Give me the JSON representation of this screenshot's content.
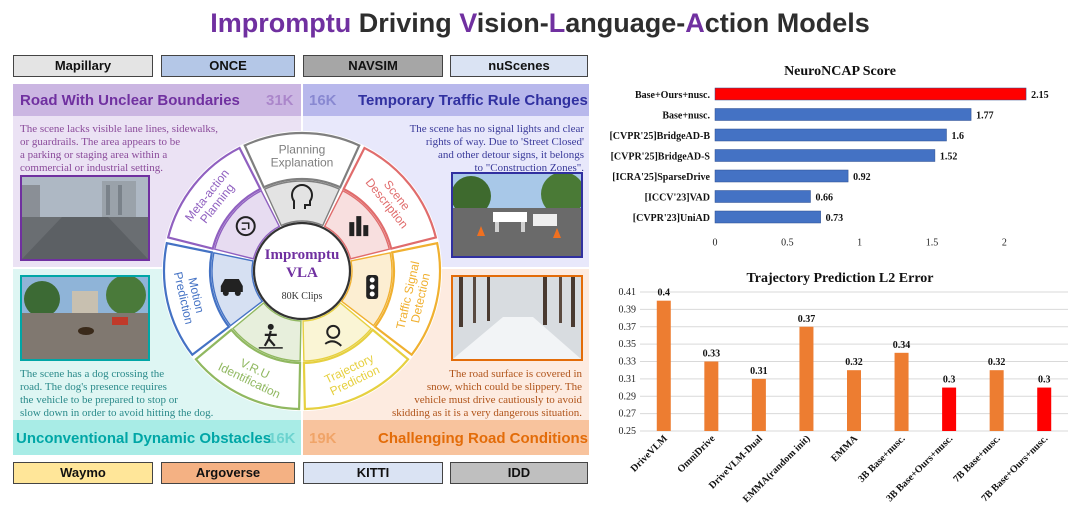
{
  "title": {
    "parts": [
      {
        "text": "Impromptu",
        "hl": true
      },
      {
        "text": " Driving ",
        "hl": false
      },
      {
        "text": "V",
        "hl": true
      },
      {
        "text": "ision-",
        "hl": false
      },
      {
        "text": "L",
        "hl": true
      },
      {
        "text": "anguage-",
        "hl": false
      },
      {
        "text": "A",
        "hl": true
      },
      {
        "text": "ction Models",
        "hl": false
      }
    ]
  },
  "datasets_top": [
    {
      "label": "Mapillary",
      "color": "#e4e4e4"
    },
    {
      "label": "ONCE",
      "color": "#b4c7e7"
    },
    {
      "label": "NAVSIM",
      "color": "#a6a6a6"
    },
    {
      "label": "nuScenes",
      "color": "#dae3f3"
    }
  ],
  "datasets_bottom": [
    {
      "label": "Waymo",
      "color": "#ffe699"
    },
    {
      "label": "Argoverse",
      "color": "#f4b183"
    },
    {
      "label": "KITTI",
      "color": "#dae3f3"
    },
    {
      "label": "IDD",
      "color": "#bfbfbf"
    }
  ],
  "quadrants": {
    "tl": {
      "title": "Road With Unclear Boundaries",
      "count": "31K",
      "color": "#7030a0",
      "bg": "#e6dcf1",
      "band": "#c8b4e0",
      "text": [
        "The scene lacks visible lane lines, sidewalks,",
        "or guardrails. The area appears to be",
        "a parking or staging area within a",
        "commercial or industrial setting."
      ]
    },
    "tr": {
      "title": "Temporary Traffic Rule Changes",
      "count": "16K",
      "color": "#3030a0",
      "bg": "#e6e6f8",
      "band": "#b4b4e8",
      "text": [
        "The scene has no signal lights and clear",
        "rights  of way. Due to 'Street Closed'",
        "and other detour signs, it belongs",
        "to \"Construction Zones\"."
      ]
    },
    "bl": {
      "title": "Unconventional Dynamic Obstacles",
      "count": "16K",
      "color": "#00a6a6",
      "bg": "#dff7f5",
      "band": "#a6ece6",
      "text": [
        "The scene has a dog crossing the",
        "road. The dog's presence requires",
        "the vehicle to be prepared to stop or",
        "slow down in order to avoid hitting the dog."
      ]
    },
    "br": {
      "title": "Challenging Road Conditions",
      "count": "19K",
      "color": "#e36c09",
      "bg": "#fde9dc",
      "band": "#f8c29c",
      "text": [
        "The road surface is covered in",
        "snow, which could be slippery. The",
        "vehicle must drive cautiously to avoid",
        "skidding as it is a very dangerous situation."
      ]
    }
  },
  "wheel": {
    "center_title": [
      "Impromptu",
      "VLA"
    ],
    "center_sub": "80K Clips",
    "segments": [
      {
        "lines": [
          "Planning",
          "Explanation"
        ],
        "color": "#7f7f7f",
        "icon": "head-icon"
      },
      {
        "lines": [
          "Scene",
          "Description"
        ],
        "color": "#e06c6c",
        "icon": "city-icon"
      },
      {
        "lines": [
          "Traffic Signal",
          "Detection"
        ],
        "color": "#f0b030",
        "icon": "traffic-light-icon"
      },
      {
        "lines": [
          "Trajectory",
          "Prediction"
        ],
        "color": "#e6d040",
        "icon": "route-icon"
      },
      {
        "lines": [
          "V.R.U",
          "Identification"
        ],
        "color": "#90b860",
        "icon": "pedestrian-icon"
      },
      {
        "lines": [
          "Motion",
          "Prediction"
        ],
        "color": "#4472c4",
        "icon": "car-icon"
      },
      {
        "lines": [
          "Meta-action",
          "Planning"
        ],
        "color": "#9060c0",
        "icon": "brain-icon"
      }
    ]
  },
  "chart_data": [
    {
      "type": "bar",
      "orientation": "horizontal",
      "title": "NeuroNCAP Score",
      "categories": [
        "Base+Ours+nusc.",
        "Base+nusc.",
        "[CVPR'25]BridgeAD-B",
        "[CVPR'25]BridgeAD-S",
        "[ICRA'25]SparseDrive",
        "[ICCV'23]VAD",
        "[CVPR'23]UniAD"
      ],
      "values": [
        2.15,
        1.77,
        1.6,
        1.52,
        0.92,
        0.66,
        0.73
      ],
      "colors": [
        "#ff0000",
        "#4472c4",
        "#4472c4",
        "#4472c4",
        "#4472c4",
        "#4472c4",
        "#4472c4"
      ],
      "xticks": [
        "0",
        "0.5",
        "1",
        "1.5",
        "2"
      ],
      "xlim": [
        0,
        2.35
      ]
    },
    {
      "type": "bar",
      "title": "Trajectory Prediction L2 Error",
      "categories": [
        "DriveVLM",
        "OmniDrive",
        "DriveVLM-Dual",
        "EMMA(random init)",
        "EMMA",
        "3B Base+nusc.",
        "3B Base+Ours+nusc.",
        "7B Base+nusc.",
        "7B Base+Ours+nusc."
      ],
      "values": [
        0.4,
        0.33,
        0.31,
        0.37,
        0.32,
        0.34,
        0.3,
        0.32,
        0.3
      ],
      "labels": [
        "0.4",
        "0.33",
        "0.31",
        "0.37",
        "0.32",
        "0.34",
        "0.3",
        "0.32",
        "0.3"
      ],
      "colors": [
        "#ed7d31",
        "#ed7d31",
        "#ed7d31",
        "#ed7d31",
        "#ed7d31",
        "#ed7d31",
        "#ff0000",
        "#ed7d31",
        "#ff0000"
      ],
      "yticks": [
        "0.41",
        "0.39",
        "0.37",
        "0.35",
        "0.33",
        "0.31",
        "0.29",
        "0.27",
        "0.25"
      ],
      "ylim": [
        0.25,
        0.41
      ],
      "grid": true
    }
  ]
}
